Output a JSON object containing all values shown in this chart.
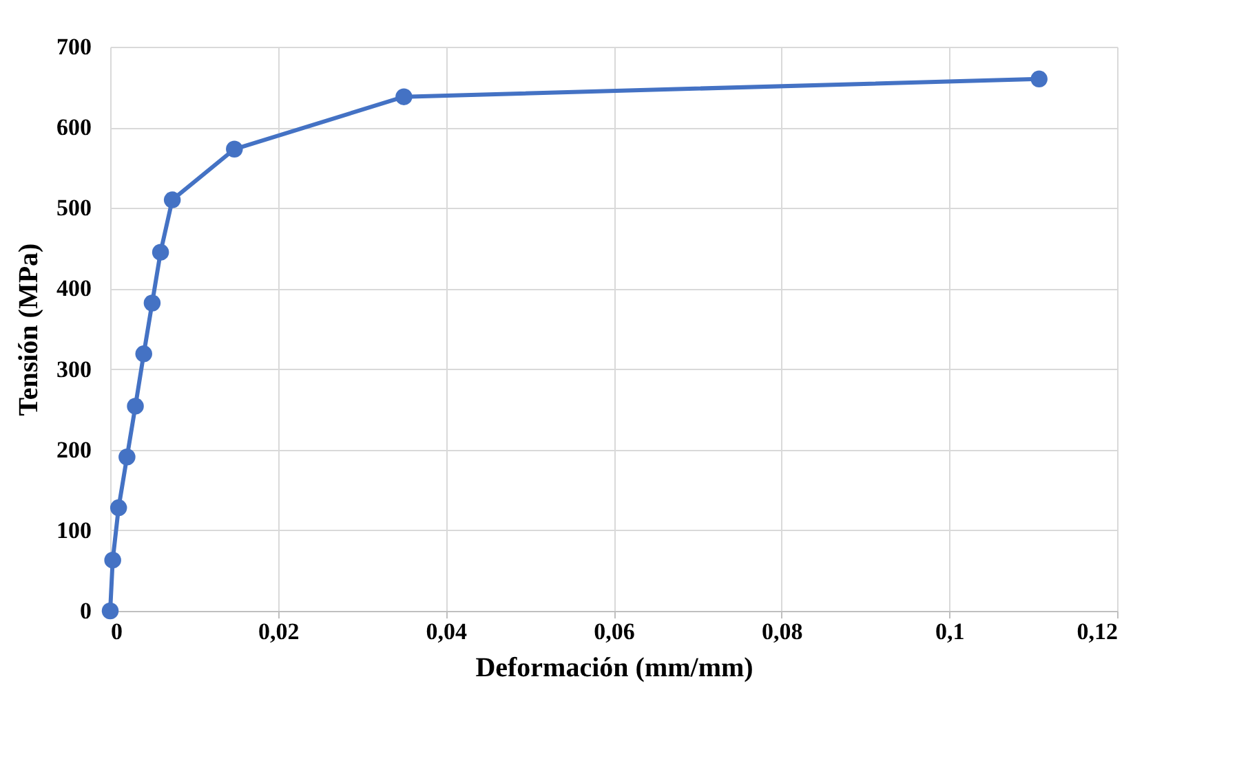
{
  "chart_data": {
    "type": "line",
    "xlabel": "Deformación (mm/mm)",
    "ylabel": "Tensión (MPa)",
    "x": [
      0,
      0.0003,
      0.001,
      0.002,
      0.003,
      0.004,
      0.005,
      0.006,
      0.0074,
      0.0148,
      0.035,
      0.1107
    ],
    "series": [
      {
        "color": "#4472c4",
        "values": [
          0,
          63,
          128,
          191,
          254,
          319,
          382,
          445,
          510,
          573,
          638,
          660
        ]
      }
    ],
    "xlim": [
      0,
      0.12
    ],
    "ylim": [
      0,
      700
    ],
    "xticks": [
      0,
      {
        "value": 0.02,
        "label": "0,02"
      },
      {
        "value": 0.04,
        "label": "0,04"
      },
      {
        "value": 0.06,
        "label": "0,06"
      },
      {
        "value": 0.08,
        "label": "0,08"
      },
      {
        "value": 0.1,
        "label": "0,1"
      },
      {
        "value": 0.12,
        "label": "0,12"
      }
    ],
    "yticks": [
      0,
      100,
      200,
      300,
      400,
      500,
      600,
      700
    ],
    "grid": true,
    "marker": "circle",
    "line_style": "solid"
  }
}
